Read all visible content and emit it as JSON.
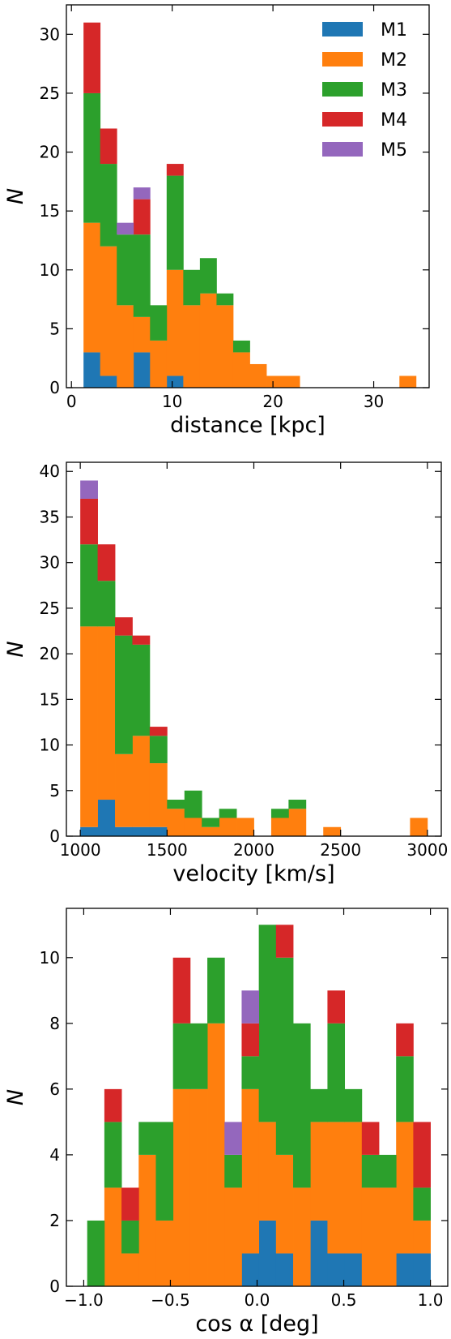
{
  "colors": {
    "M1": "#1f77b4",
    "M2": "#ff7f0e",
    "M3": "#2ca02c",
    "M4": "#d62728",
    "M5": "#9467bd"
  },
  "chart_data": [
    {
      "type": "bar",
      "stacked": true,
      "xlabel": "distance [kpc]",
      "ylabel": "N",
      "xlim": [
        -0.5,
        35.5
      ],
      "ylim": [
        0,
        32.5
      ],
      "xticks": [
        0,
        10,
        20,
        30
      ],
      "yticks": [
        0,
        5,
        10,
        15,
        20,
        25,
        30
      ],
      "bin_edges": [
        1.2,
        2.85,
        4.5,
        6.15,
        7.8,
        9.45,
        11.1,
        12.75,
        14.4,
        16.05,
        17.7,
        19.35,
        21.0,
        22.65,
        24.3,
        25.95,
        27.6,
        29.25,
        30.9,
        32.55,
        34.2
      ],
      "legend": {
        "placement": "upper right",
        "entries": [
          "M1",
          "M2",
          "M3",
          "M4",
          "M5"
        ]
      },
      "series": [
        {
          "name": "M1",
          "values": [
            3,
            1,
            0,
            3,
            0,
            1,
            0,
            0,
            0,
            0,
            0,
            0,
            0,
            0,
            0,
            0,
            0,
            0,
            0,
            0
          ]
        },
        {
          "name": "M2",
          "values": [
            11,
            11,
            7,
            3,
            4,
            9,
            7,
            8,
            7,
            3,
            2,
            1,
            1,
            0,
            0,
            0,
            0,
            0,
            0,
            1
          ]
        },
        {
          "name": "M3",
          "values": [
            11,
            7,
            6,
            7,
            3,
            8,
            3,
            3,
            1,
            1,
            0,
            0,
            0,
            0,
            0,
            0,
            0,
            0,
            0,
            0
          ]
        },
        {
          "name": "M4",
          "values": [
            6,
            3,
            0,
            3,
            0,
            1,
            0,
            0,
            0,
            0,
            0,
            0,
            0,
            0,
            0,
            0,
            0,
            0,
            0,
            0
          ]
        },
        {
          "name": "M5",
          "values": [
            0,
            0,
            1,
            1,
            0,
            0,
            0,
            0,
            0,
            0,
            0,
            0,
            0,
            0,
            0,
            0,
            0,
            0,
            0,
            0
          ]
        }
      ]
    },
    {
      "type": "bar",
      "stacked": true,
      "xlabel": "velocity [km/s]",
      "ylabel": "N",
      "xlim": [
        920,
        3080
      ],
      "ylim": [
        0,
        41
      ],
      "xticks": [
        1000,
        1500,
        2000,
        2500,
        3000
      ],
      "yticks": [
        0,
        5,
        10,
        15,
        20,
        25,
        30,
        35,
        40
      ],
      "bin_edges": [
        1000,
        1100,
        1200,
        1300,
        1400,
        1500,
        1600,
        1700,
        1800,
        1900,
        2000,
        2100,
        2200,
        2300,
        2400,
        2500,
        2600,
        2700,
        2800,
        2900,
        3000
      ],
      "series": [
        {
          "name": "M1",
          "values": [
            1,
            4,
            1,
            1,
            1,
            0,
            0,
            0,
            0,
            0,
            0,
            0,
            0,
            0,
            0,
            0,
            0,
            0,
            0,
            0
          ]
        },
        {
          "name": "M2",
          "values": [
            22,
            19,
            8,
            10,
            7,
            3,
            2,
            1,
            2,
            2,
            0,
            2,
            3,
            0,
            1,
            0,
            0,
            0,
            0,
            2
          ]
        },
        {
          "name": "M3",
          "values": [
            9,
            5,
            13,
            10,
            3,
            1,
            3,
            1,
            1,
            0,
            0,
            1,
            1,
            0,
            0,
            0,
            0,
            0,
            0,
            0
          ]
        },
        {
          "name": "M4",
          "values": [
            5,
            4,
            2,
            1,
            1,
            0,
            0,
            0,
            0,
            0,
            0,
            0,
            0,
            0,
            0,
            0,
            0,
            0,
            0,
            0
          ]
        },
        {
          "name": "M5",
          "values": [
            2,
            0,
            0,
            0,
            0,
            0,
            0,
            0,
            0,
            0,
            0,
            0,
            0,
            0,
            0,
            0,
            0,
            0,
            0,
            0
          ]
        }
      ]
    },
    {
      "type": "bar",
      "stacked": true,
      "xlabel": "cos α [deg]",
      "ylabel": "N",
      "xlim": [
        -1.1,
        1.1
      ],
      "ylim": [
        0,
        11.5
      ],
      "xticks": [
        -1.0,
        -0.5,
        0.0,
        0.5,
        1.0
      ],
      "xticklabels": [
        "−1.0",
        "−0.5",
        "0.0",
        "0.5",
        "1.0"
      ],
      "yticks": [
        0,
        2,
        4,
        6,
        8,
        10
      ],
      "bin_edges": [
        -0.98,
        -0.881,
        -0.782,
        -0.683,
        -0.584,
        -0.485,
        -0.386,
        -0.287,
        -0.188,
        -0.089,
        0.01,
        0.109,
        0.208,
        0.307,
        0.406,
        0.505,
        0.604,
        0.703,
        0.802,
        0.901,
        1.0
      ],
      "series": [
        {
          "name": "M1",
          "values": [
            0,
            0,
            0,
            0,
            0,
            0,
            0,
            0,
            0,
            1,
            2,
            1,
            0,
            2,
            1,
            1,
            0,
            0,
            1,
            1
          ]
        },
        {
          "name": "M2",
          "values": [
            0,
            3,
            1,
            4,
            2,
            6,
            6,
            8,
            3,
            5,
            3,
            3,
            3,
            3,
            4,
            4,
            3,
            3,
            4,
            1
          ]
        },
        {
          "name": "M3",
          "values": [
            2,
            2,
            1,
            1,
            3,
            2,
            2,
            2,
            1,
            1,
            6,
            6,
            5,
            1,
            3,
            1,
            1,
            1,
            2,
            1
          ]
        },
        {
          "name": "M4",
          "values": [
            0,
            1,
            1,
            0,
            0,
            2,
            0,
            0,
            0,
            1,
            0,
            1,
            0,
            0,
            1,
            0,
            1,
            0,
            1,
            2
          ]
        },
        {
          "name": "M5",
          "values": [
            0,
            0,
            0,
            0,
            0,
            0,
            0,
            0,
            1,
            1,
            0,
            0,
            0,
            0,
            0,
            0,
            0,
            0,
            0,
            0
          ]
        }
      ]
    }
  ]
}
